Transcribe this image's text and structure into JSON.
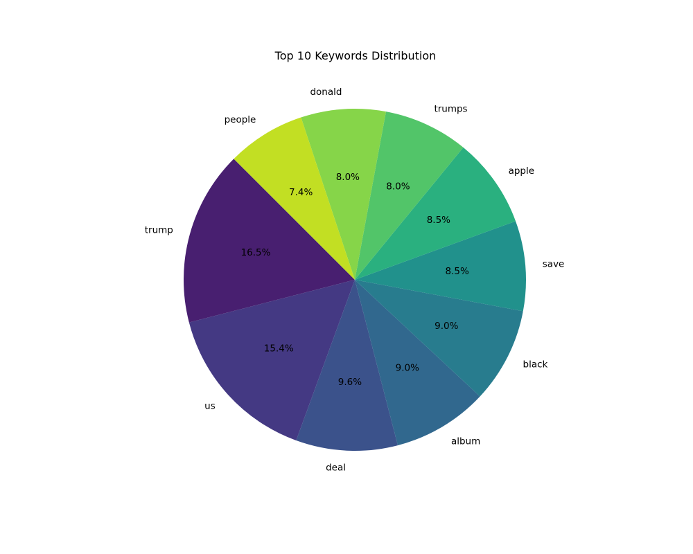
{
  "chart_data": {
    "type": "pie",
    "title": "Top 10 Keywords Distribution",
    "slices": [
      {
        "label": "trump",
        "percent": 16.5,
        "color": "#481f70"
      },
      {
        "label": "us",
        "percent": 15.4,
        "color": "#443983"
      },
      {
        "label": "deal",
        "percent": 9.6,
        "color": "#3b528b"
      },
      {
        "label": "album",
        "percent": 9.0,
        "color": "#31688e"
      },
      {
        "label": "black",
        "percent": 9.0,
        "color": "#287c8e"
      },
      {
        "label": "save",
        "percent": 8.5,
        "color": "#21918c"
      },
      {
        "label": "apple",
        "percent": 8.5,
        "color": "#2ab07f"
      },
      {
        "label": "trumps",
        "percent": 8.0,
        "color": "#52c569"
      },
      {
        "label": "donald",
        "percent": 8.0,
        "color": "#86d549"
      },
      {
        "label": "people",
        "percent": 7.4,
        "color": "#c2df23"
      }
    ],
    "start_angle_deg": 135,
    "direction": "counterclockwise",
    "legend": "none"
  }
}
